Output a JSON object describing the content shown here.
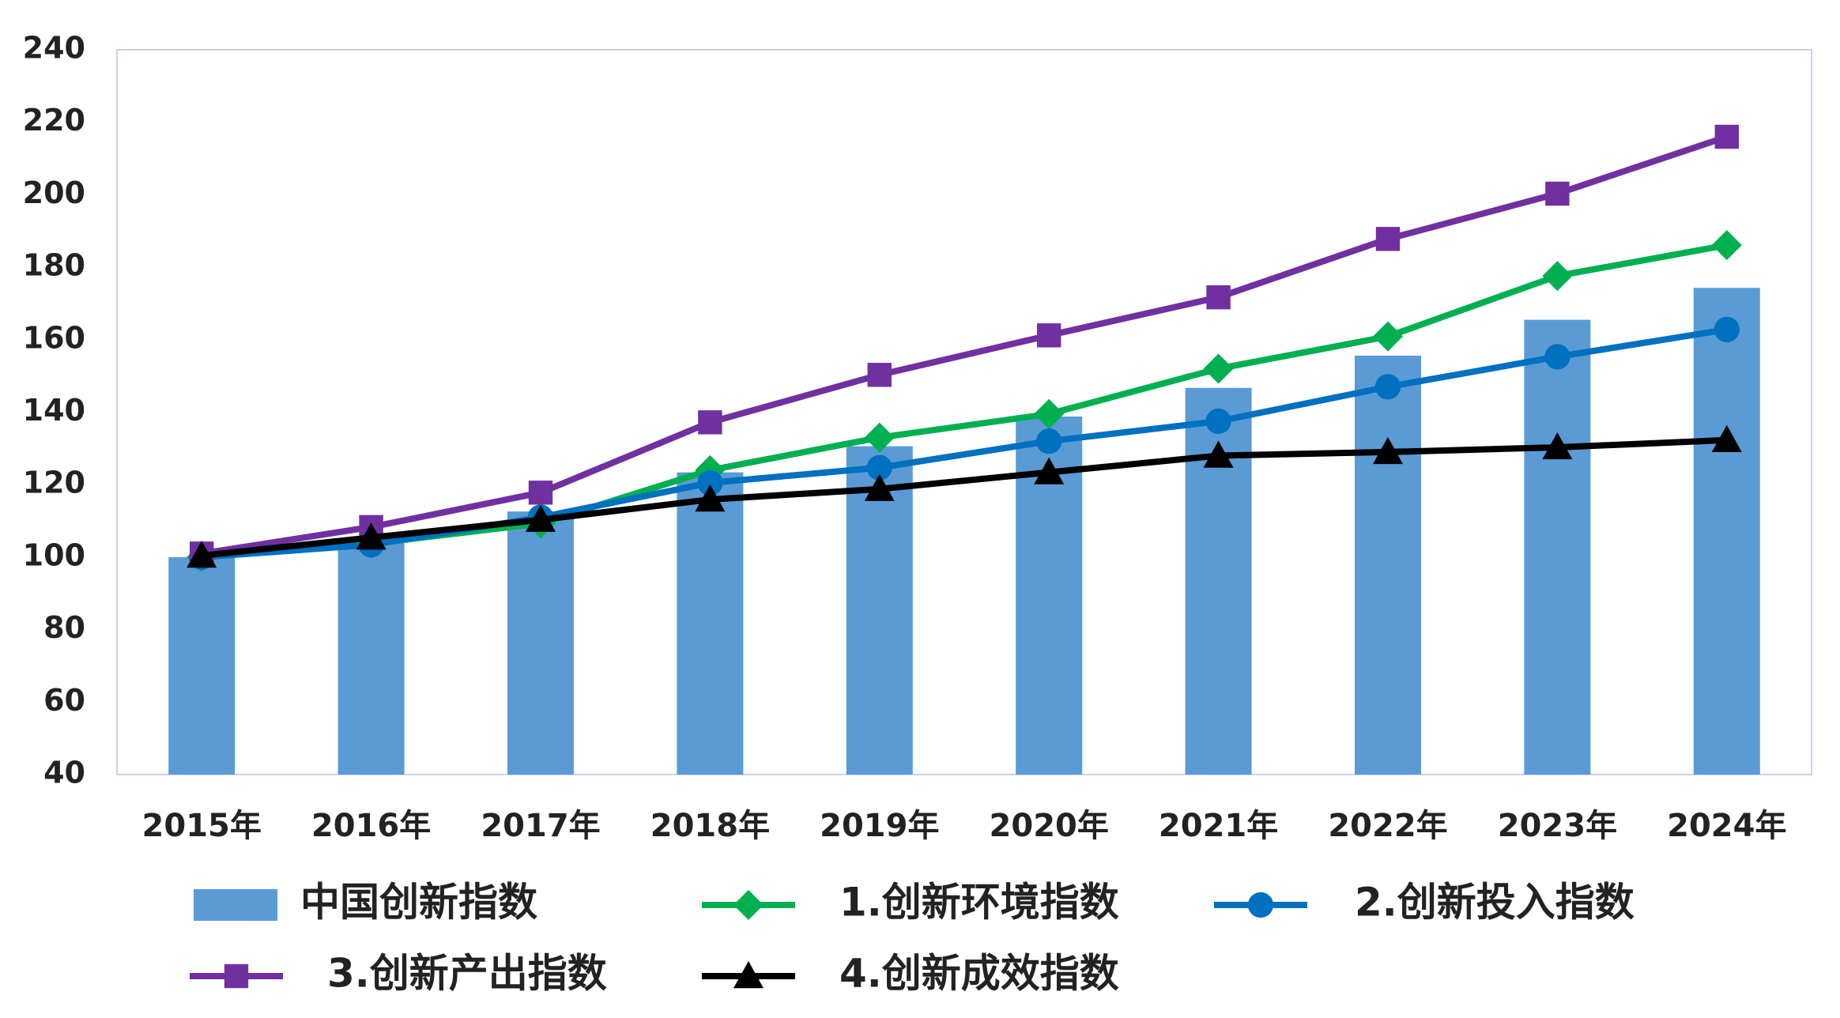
{
  "chart_data": {
    "type": "combo",
    "categories": [
      "2015年",
      "2016年",
      "2017年",
      "2018年",
      "2019年",
      "2020年",
      "2021年",
      "2022年",
      "2023年",
      "2024年"
    ],
    "ylim": [
      40,
      240
    ],
    "yticks": [
      40,
      60,
      80,
      100,
      120,
      140,
      160,
      180,
      200,
      220,
      240
    ],
    "grid": false,
    "series": [
      {
        "name": "中国创新指数",
        "type": "bar",
        "color": "#5b9bd5",
        "values": [
          100,
          104.4,
          112.6,
          123.4,
          130.6,
          138.8,
          146.7,
          155.6,
          165.5,
          174.3
        ]
      },
      {
        "name": "1.创新环境指数",
        "type": "line",
        "marker": "diamond",
        "color": "#00b050",
        "values": [
          100,
          103.7,
          109.3,
          124,
          133,
          139.5,
          152,
          160.9,
          177.6,
          186.1
        ]
      },
      {
        "name": "2.创新投入指数",
        "type": "line",
        "marker": "circle",
        "color": "#0070c0",
        "values": [
          100,
          103.4,
          111,
          120.5,
          124.7,
          132,
          137.5,
          147,
          155.3,
          162.8
        ]
      },
      {
        "name": "3.创新产出指数",
        "type": "line",
        "marker": "square",
        "color": "#7030a0",
        "values": [
          101,
          108.3,
          117.8,
          137.2,
          150.3,
          161.2,
          171.7,
          187.8,
          200.3,
          216
        ]
      },
      {
        "name": "4.创新成效指数",
        "type": "line",
        "marker": "triangle",
        "color": "#000000",
        "values": [
          100.4,
          105.4,
          110.3,
          115.9,
          118.8,
          123.4,
          128,
          129,
          130.3,
          132.3
        ]
      }
    ]
  }
}
